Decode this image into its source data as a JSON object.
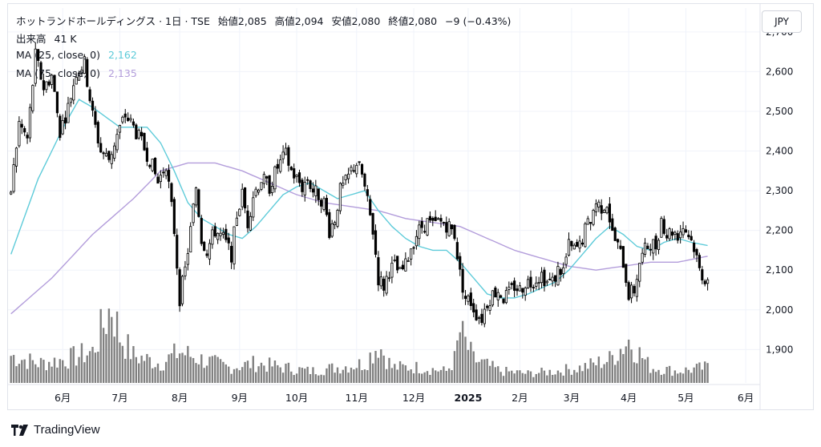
{
  "header": {
    "title": "ホットランドホールディングス · 1日 · TSE",
    "open_label": "始値",
    "open": "2,085",
    "high_label": "高値",
    "high": "2,094",
    "low_label": "安値",
    "low": "2,080",
    "close_label": "終値",
    "close": "2,080",
    "change": "−9 (−0.43%)"
  },
  "legend": {
    "volume": "出来高",
    "volume_value": "41 K",
    "ma1": "MA (25, close, 0)",
    "ma1_value": "2,162",
    "ma2": "MA (75, close, 0)",
    "ma2_value": "2,135"
  },
  "currency": "JPY",
  "brand": "TradingView",
  "colors": {
    "up": "#ffffff",
    "down": "#000000",
    "wick": "#000000",
    "ma25": "#5ecbd9",
    "ma75": "#b39ddb",
    "volume": "#808080",
    "grid": "#f0f3fa",
    "text": "#131722"
  },
  "chart_data": {
    "type": "candlestick",
    "ylim": [
      1820,
      2740
    ],
    "y_ticks": [
      "2,700",
      "2,600",
      "2,500",
      "2,400",
      "2,300",
      "2,200",
      "2,100",
      "2,000",
      "1,900"
    ],
    "y_tick_values": [
      2700,
      2600,
      2500,
      2400,
      2300,
      2200,
      2100,
      2000,
      1900
    ],
    "x_ticks": [
      "6月",
      "7月",
      "8月",
      "9月",
      "10月",
      "11月",
      "12月",
      "2025",
      "2月",
      "3月",
      "4月",
      "5月",
      "6月"
    ],
    "x_tick_index": [
      19,
      40,
      62,
      84,
      105,
      127,
      148,
      168,
      187,
      206,
      227,
      248,
      270
    ],
    "ohlc_keypoints": [
      [
        0,
        2300
      ],
      [
        3,
        2470
      ],
      [
        6,
        2430
      ],
      [
        9,
        2640
      ],
      [
        12,
        2560
      ],
      [
        15,
        2590
      ],
      [
        18,
        2450
      ],
      [
        21,
        2510
      ],
      [
        24,
        2600
      ],
      [
        27,
        2620
      ],
      [
        30,
        2490
      ],
      [
        33,
        2400
      ],
      [
        36,
        2380
      ],
      [
        39,
        2440
      ],
      [
        42,
        2490
      ],
      [
        45,
        2460
      ],
      [
        48,
        2420
      ],
      [
        51,
        2380
      ],
      [
        54,
        2320
      ],
      [
        57,
        2370
      ],
      [
        60,
        2200
      ],
      [
        62,
        2030
      ],
      [
        64,
        2100
      ],
      [
        66,
        2200
      ],
      [
        68,
        2310
      ],
      [
        70,
        2180
      ],
      [
        72,
        2150
      ],
      [
        75,
        2200
      ],
      [
        78,
        2180
      ],
      [
        81,
        2140
      ],
      [
        83,
        2240
      ],
      [
        85,
        2290
      ],
      [
        87,
        2220
      ],
      [
        89,
        2290
      ],
      [
        92,
        2330
      ],
      [
        95,
        2310
      ],
      [
        98,
        2360
      ],
      [
        101,
        2390
      ],
      [
        103,
        2350
      ],
      [
        105,
        2330
      ],
      [
        107,
        2310
      ],
      [
        109,
        2330
      ],
      [
        111,
        2300
      ],
      [
        113,
        2290
      ],
      [
        115,
        2270
      ],
      [
        117,
        2200
      ],
      [
        119,
        2230
      ],
      [
        121,
        2300
      ],
      [
        123,
        2320
      ],
      [
        125,
        2350
      ],
      [
        127,
        2370
      ],
      [
        129,
        2340
      ],
      [
        131,
        2270
      ],
      [
        133,
        2200
      ],
      [
        135,
        2080
      ],
      [
        137,
        2060
      ],
      [
        139,
        2100
      ],
      [
        141,
        2110
      ],
      [
        143,
        2090
      ],
      [
        145,
        2110
      ],
      [
        147,
        2160
      ],
      [
        149,
        2190
      ],
      [
        151,
        2210
      ],
      [
        153,
        2220
      ],
      [
        155,
        2210
      ],
      [
        157,
        2220
      ],
      [
        159,
        2220
      ],
      [
        161,
        2210
      ],
      [
        163,
        2190
      ],
      [
        165,
        2090
      ],
      [
        167,
        2030
      ],
      [
        169,
        2020
      ],
      [
        171,
        1990
      ],
      [
        173,
        1980
      ],
      [
        175,
        2020
      ],
      [
        177,
        2040
      ],
      [
        179,
        2050
      ],
      [
        181,
        2030
      ],
      [
        183,
        2040
      ],
      [
        185,
        2060
      ],
      [
        187,
        2050
      ],
      [
        189,
        2070
      ],
      [
        191,
        2070
      ],
      [
        193,
        2080
      ],
      [
        195,
        2090
      ],
      [
        197,
        2070
      ],
      [
        199,
        2070
      ],
      [
        201,
        2100
      ],
      [
        203,
        2100
      ],
      [
        205,
        2160
      ],
      [
        207,
        2150
      ],
      [
        209,
        2160
      ],
      [
        211,
        2200
      ],
      [
        213,
        2230
      ],
      [
        215,
        2270
      ],
      [
        217,
        2260
      ],
      [
        219,
        2270
      ],
      [
        221,
        2190
      ],
      [
        223,
        2160
      ],
      [
        225,
        2120
      ],
      [
        227,
        2040
      ],
      [
        229,
        2050
      ],
      [
        231,
        2120
      ],
      [
        233,
        2150
      ],
      [
        235,
        2170
      ],
      [
        237,
        2160
      ],
      [
        239,
        2230
      ],
      [
        241,
        2190
      ],
      [
        243,
        2200
      ],
      [
        245,
        2190
      ],
      [
        247,
        2210
      ],
      [
        249,
        2190
      ],
      [
        251,
        2160
      ],
      [
        253,
        2100
      ],
      [
        255,
        2080
      ],
      [
        256,
        2080
      ]
    ],
    "ma25_keypoints": [
      [
        0,
        2140
      ],
      [
        10,
        2330
      ],
      [
        20,
        2470
      ],
      [
        25,
        2530
      ],
      [
        30,
        2510
      ],
      [
        40,
        2460
      ],
      [
        50,
        2460
      ],
      [
        55,
        2420
      ],
      [
        60,
        2350
      ],
      [
        65,
        2270
      ],
      [
        70,
        2230
      ],
      [
        75,
        2210
      ],
      [
        80,
        2190
      ],
      [
        85,
        2180
      ],
      [
        90,
        2210
      ],
      [
        95,
        2250
      ],
      [
        100,
        2290
      ],
      [
        105,
        2310
      ],
      [
        110,
        2320
      ],
      [
        115,
        2300
      ],
      [
        120,
        2280
      ],
      [
        125,
        2290
      ],
      [
        130,
        2300
      ],
      [
        135,
        2250
      ],
      [
        140,
        2210
      ],
      [
        145,
        2180
      ],
      [
        150,
        2160
      ],
      [
        155,
        2150
      ],
      [
        160,
        2150
      ],
      [
        165,
        2120
      ],
      [
        170,
        2080
      ],
      [
        175,
        2040
      ],
      [
        180,
        2030
      ],
      [
        185,
        2030
      ],
      [
        190,
        2040
      ],
      [
        195,
        2055
      ],
      [
        200,
        2070
      ],
      [
        205,
        2100
      ],
      [
        210,
        2140
      ],
      [
        215,
        2180
      ],
      [
        220,
        2210
      ],
      [
        225,
        2190
      ],
      [
        230,
        2160
      ],
      [
        235,
        2150
      ],
      [
        240,
        2170
      ],
      [
        245,
        2180
      ],
      [
        250,
        2170
      ],
      [
        256,
        2162
      ]
    ],
    "ma75_keypoints": [
      [
        0,
        1990
      ],
      [
        15,
        2080
      ],
      [
        30,
        2190
      ],
      [
        45,
        2280
      ],
      [
        55,
        2350
      ],
      [
        65,
        2370
      ],
      [
        75,
        2370
      ],
      [
        85,
        2350
      ],
      [
        95,
        2320
      ],
      [
        105,
        2290
      ],
      [
        115,
        2270
      ],
      [
        125,
        2260
      ],
      [
        135,
        2250
      ],
      [
        145,
        2230
      ],
      [
        155,
        2220
      ],
      [
        165,
        2210
      ],
      [
        175,
        2180
      ],
      [
        185,
        2150
      ],
      [
        195,
        2130
      ],
      [
        205,
        2110
      ],
      [
        215,
        2100
      ],
      [
        225,
        2110
      ],
      [
        235,
        2120
      ],
      [
        245,
        2120
      ],
      [
        256,
        2135
      ]
    ],
    "volume_keypoints": [
      [
        0,
        0.35
      ],
      [
        10,
        0.25
      ],
      [
        20,
        0.3
      ],
      [
        30,
        0.4
      ],
      [
        37,
        1.0
      ],
      [
        40,
        0.6
      ],
      [
        45,
        0.35
      ],
      [
        55,
        0.25
      ],
      [
        62,
        0.4
      ],
      [
        70,
        0.3
      ],
      [
        80,
        0.2
      ],
      [
        90,
        0.25
      ],
      [
        100,
        0.2
      ],
      [
        110,
        0.15
      ],
      [
        120,
        0.2
      ],
      [
        130,
        0.25
      ],
      [
        135,
        0.5
      ],
      [
        140,
        0.2
      ],
      [
        150,
        0.2
      ],
      [
        160,
        0.15
      ],
      [
        163,
        0.3
      ],
      [
        165,
        0.65
      ],
      [
        170,
        0.3
      ],
      [
        180,
        0.15
      ],
      [
        190,
        0.12
      ],
      [
        200,
        0.15
      ],
      [
        210,
        0.2
      ],
      [
        220,
        0.3
      ],
      [
        227,
        0.55
      ],
      [
        235,
        0.2
      ],
      [
        245,
        0.15
      ],
      [
        256,
        0.2
      ]
    ],
    "n_bars": 257
  }
}
